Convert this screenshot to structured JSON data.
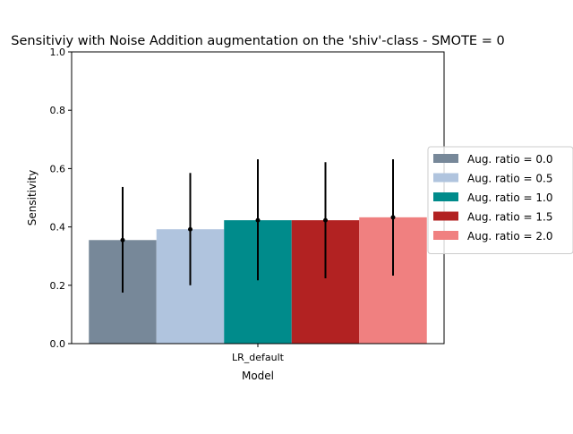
{
  "chart_data": {
    "type": "bar",
    "title": "Sensitiviy with Noise Addition augmentation on the 'shiv'-class - SMOTE = 0",
    "xlabel": "Model",
    "ylabel": "Sensitivity",
    "categories": [
      "LR_default"
    ],
    "ylim": [
      0,
      1
    ],
    "yticks": [
      "0.0",
      "0.2",
      "0.4",
      "0.6",
      "0.8",
      "1.0"
    ],
    "grid": false,
    "legend_position": "right",
    "series": [
      {
        "name": "Aug. ratio = 0.0",
        "values": [
          0.355
        ],
        "err_low": [
          0.175
        ],
        "err_high": [
          0.537
        ],
        "color": "#778899"
      },
      {
        "name": "Aug. ratio = 0.5",
        "values": [
          0.392
        ],
        "err_low": [
          0.2
        ],
        "err_high": [
          0.585
        ],
        "color": "#b0c4de"
      },
      {
        "name": "Aug. ratio = 1.0",
        "values": [
          0.423
        ],
        "err_low": [
          0.217
        ],
        "err_high": [
          0.632
        ],
        "color": "#008b8b"
      },
      {
        "name": "Aug. ratio = 1.5",
        "values": [
          0.423
        ],
        "err_low": [
          0.224
        ],
        "err_high": [
          0.622
        ],
        "color": "#b22222"
      },
      {
        "name": "Aug. ratio = 2.0",
        "values": [
          0.433
        ],
        "err_low": [
          0.233
        ],
        "err_high": [
          0.632
        ],
        "color": "#f08080"
      }
    ]
  }
}
